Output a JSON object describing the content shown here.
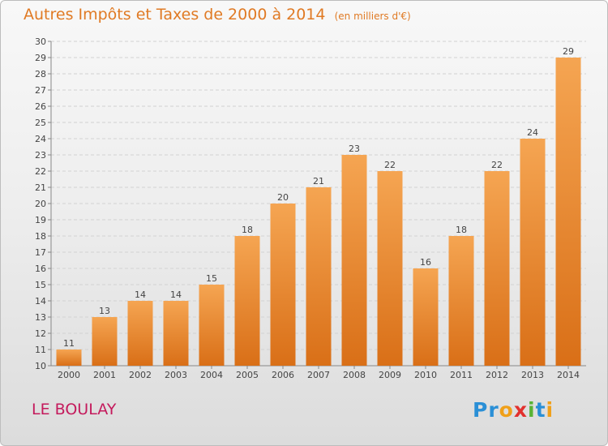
{
  "chart_data": {
    "type": "bar",
    "title": "Autres Impôts et Taxes de 2000 à 2014",
    "subtitle": "(en milliers d'€)",
    "categories": [
      "2000",
      "2001",
      "2002",
      "2003",
      "2004",
      "2005",
      "2006",
      "2007",
      "2008",
      "2009",
      "2010",
      "2011",
      "2012",
      "2013",
      "2014"
    ],
    "values": [
      11,
      13,
      14,
      14,
      15,
      18,
      20,
      21,
      23,
      22,
      16,
      18,
      22,
      24,
      29
    ],
    "ylim": [
      10,
      30
    ],
    "yticks": [
      10,
      11,
      12,
      13,
      14,
      15,
      16,
      17,
      18,
      19,
      20,
      21,
      22,
      23,
      24,
      25,
      26,
      27,
      28,
      29,
      30
    ],
    "grid": true,
    "bar_color": "#f08c30"
  },
  "commune": "LE BOULAY",
  "logo": {
    "letters": [
      "P",
      "r",
      "o",
      "x",
      "i",
      "t",
      "i"
    ]
  }
}
